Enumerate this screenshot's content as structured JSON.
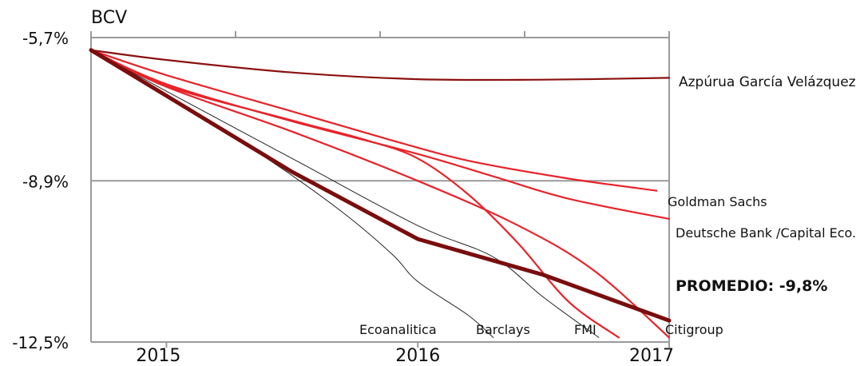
{
  "chart_data": {
    "type": "line",
    "title": "BCV",
    "xlabel": "",
    "ylabel": "",
    "x_ticks": [
      "2015",
      "2016",
      "2017"
    ],
    "y_ticks": [
      "-5,7%",
      "-8,9%",
      "-12,5%"
    ],
    "y_tick_values": [
      -5.7,
      -8.9,
      -12.5
    ],
    "ylim": [
      -12.5,
      -5.7
    ],
    "xlim": [
      2014.7,
      2017
    ],
    "colors": {
      "average": "#7a0d0d",
      "azpurua": "#8b1010",
      "bank": "#e8232a",
      "thin": "#222222",
      "grid": "#9a9a9a"
    },
    "series": [
      {
        "name": "Azpúrua García Velázquez",
        "style": "dark",
        "points": [
          [
            2014.7,
            -5.98
          ],
          [
            2015,
            -6.2
          ],
          [
            2015.5,
            -6.48
          ],
          [
            2016,
            -6.63
          ],
          [
            2016.5,
            -6.64
          ],
          [
            2017,
            -6.6
          ]
        ]
      },
      {
        "name": "Goldman Sachs",
        "style": "red",
        "points": [
          [
            2014.7,
            -5.98
          ],
          [
            2015,
            -6.54
          ],
          [
            2015.5,
            -7.35
          ],
          [
            2015.9,
            -8.0
          ],
          [
            2016.2,
            -8.45
          ],
          [
            2016.6,
            -8.85
          ],
          [
            2016.95,
            -9.12
          ]
        ]
      },
      {
        "name": "Deutsche Bank /Capital Eco.",
        "style": "red",
        "points": [
          [
            2014.7,
            -5.98
          ],
          [
            2015,
            -6.74
          ],
          [
            2015.5,
            -7.57
          ],
          [
            2016,
            -8.3
          ],
          [
            2016.3,
            -8.8
          ],
          [
            2016.6,
            -9.3
          ],
          [
            2017,
            -9.75
          ]
        ]
      },
      {
        "name": "FMI",
        "style": "red",
        "points": [
          [
            2014.7,
            -5.98
          ],
          [
            2015,
            -6.78
          ],
          [
            2015.5,
            -7.55
          ],
          [
            2015.8,
            -8.0
          ],
          [
            2016,
            -8.4
          ],
          [
            2016.2,
            -9.2
          ],
          [
            2016.4,
            -10.3
          ],
          [
            2016.6,
            -11.6
          ],
          [
            2016.8,
            -12.4
          ]
        ]
      },
      {
        "name": "Citigroup",
        "style": "red",
        "points": [
          [
            2014.7,
            -5.98
          ],
          [
            2015,
            -6.8
          ],
          [
            2015.5,
            -7.8
          ],
          [
            2016,
            -8.9
          ],
          [
            2016.4,
            -9.9
          ],
          [
            2016.7,
            -10.9
          ],
          [
            2017,
            -12.4
          ]
        ]
      },
      {
        "name": "Ecoanalitica",
        "style": "thin",
        "points": [
          [
            2014.7,
            -5.98
          ],
          [
            2015,
            -7.0
          ],
          [
            2015.4,
            -8.4
          ],
          [
            2015.7,
            -9.6
          ],
          [
            2015.9,
            -10.55
          ],
          [
            2016,
            -11.15
          ],
          [
            2016.2,
            -11.9
          ],
          [
            2016.3,
            -12.4
          ]
        ]
      },
      {
        "name": "Barclays",
        "style": "thin",
        "points": [
          [
            2014.7,
            -5.98
          ],
          [
            2015,
            -6.9
          ],
          [
            2015.5,
            -8.4
          ],
          [
            2016,
            -9.9
          ],
          [
            2016.3,
            -10.6
          ],
          [
            2016.5,
            -11.5
          ],
          [
            2016.72,
            -12.4
          ]
        ]
      },
      {
        "name": "PROMEDIO: -9,8%",
        "style": "average",
        "points": [
          [
            2014.7,
            -5.98
          ],
          [
            2015.5,
            -8.7
          ],
          [
            2016,
            -10.2
          ],
          [
            2016.5,
            -11.0
          ],
          [
            2017,
            -12.02
          ]
        ]
      }
    ]
  }
}
